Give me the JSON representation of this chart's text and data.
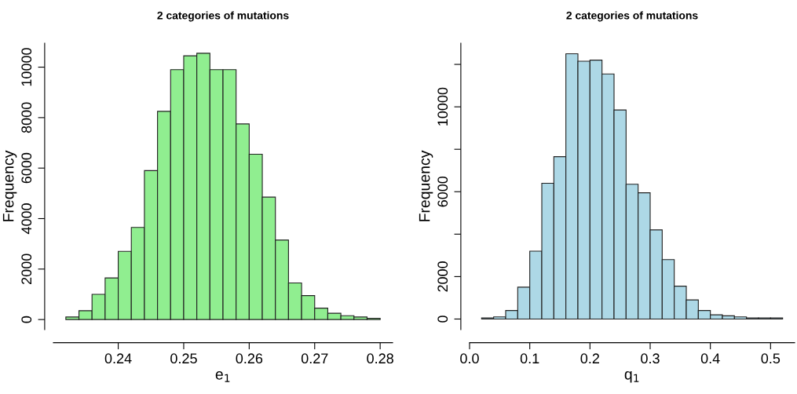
{
  "chart_data": [
    {
      "type": "histogram",
      "title": "2 categories of mutations",
      "xlabel": "e$_{1}$",
      "ylabel": "Frequency",
      "color": "#90ee90",
      "bins": [
        0.232,
        0.234,
        0.236,
        0.238,
        0.24,
        0.242,
        0.244,
        0.246,
        0.248,
        0.25,
        0.252,
        0.254,
        0.256,
        0.258,
        0.26,
        0.262,
        0.264,
        0.266,
        0.268,
        0.27,
        0.272,
        0.274,
        0.276,
        0.278,
        0.28
      ],
      "values": [
        100,
        350,
        1000,
        1650,
        2700,
        3650,
        5900,
        8250,
        9900,
        10450,
        10550,
        9900,
        9900,
        7750,
        6550,
        4850,
        3150,
        1450,
        950,
        450,
        250,
        150,
        100,
        50
      ],
      "xlim": [
        0.2301,
        0.2819
      ],
      "ylim": [
        -400,
        10950
      ],
      "xticks": [
        0.24,
        0.25,
        0.26,
        0.27,
        0.28
      ],
      "yticks": [
        0,
        2000,
        4000,
        6000,
        8000,
        10000
      ]
    },
    {
      "type": "histogram",
      "title": "2 categories of mutations",
      "xlabel": "q$_{1}$",
      "ylabel": "Frequency",
      "color": "#add8e6",
      "bins": [
        0.02,
        0.04,
        0.06,
        0.08,
        0.1,
        0.12,
        0.14,
        0.16,
        0.18,
        0.2,
        0.22,
        0.24,
        0.26,
        0.28,
        0.3,
        0.32,
        0.34,
        0.36,
        0.38,
        0.4,
        0.42,
        0.44,
        0.46,
        0.48,
        0.5,
        0.52
      ],
      "values": [
        50,
        100,
        400,
        1500,
        3200,
        6400,
        7650,
        12500,
        12150,
        12200,
        11550,
        9850,
        6350,
        5950,
        4200,
        2800,
        1550,
        900,
        400,
        200,
        150,
        100,
        50,
        50,
        50
      ],
      "xlim": [
        0.0,
        0.54
      ],
      "ylim": [
        -500,
        13000
      ],
      "xticks": [
        {
          "value": 0,
          "label": "0.0"
        },
        0.1,
        0.2,
        0.3,
        0.4,
        0.5
      ],
      "yticks": [
        0,
        2000,
        {
          "value": 4000,
          "label": null
        },
        6000,
        {
          "value": 8000,
          "label": null
        },
        10000,
        {
          "value": 12000,
          "label": null
        }
      ]
    }
  ]
}
